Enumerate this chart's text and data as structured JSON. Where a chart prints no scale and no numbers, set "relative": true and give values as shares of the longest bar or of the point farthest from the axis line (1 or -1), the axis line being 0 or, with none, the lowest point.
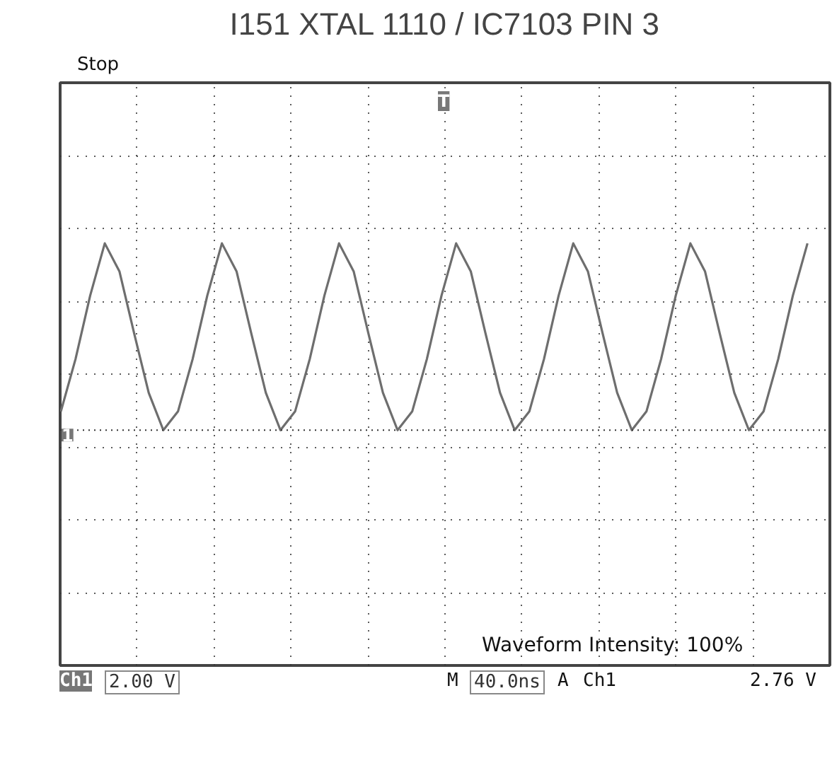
{
  "chart_data": {
    "type": "line",
    "title": "I151 XTAL 1110 / IC7103 PIN 3",
    "relative": true,
    "grid": true,
    "marker": "none",
    "line_style": "solid",
    "categories": [
      null,
      null,
      null,
      null,
      null,
      null,
      null,
      null,
      null,
      null,
      null,
      null,
      null,
      null,
      null,
      null,
      null,
      null,
      null,
      null,
      null,
      null,
      null,
      null,
      null,
      null,
      null,
      null,
      null,
      null,
      null,
      null,
      null,
      null,
      null,
      null,
      null,
      null,
      null,
      null,
      null,
      null,
      null,
      null,
      null,
      null,
      null,
      null,
      null,
      null,
      null,
      null
    ],
    "series": [
      {
        "color": "#6e6e6e",
        "values": [
          0.1,
          0.38,
          0.72,
          1.0,
          0.85,
          0.52,
          0.2,
          0,
          0.1,
          0.38,
          0.72,
          1.0,
          0.85,
          0.52,
          0.2,
          0,
          0.1,
          0.38,
          0.72,
          1.0,
          0.85,
          0.52,
          0.2,
          0,
          0.1,
          0.38,
          0.72,
          1.0,
          0.85,
          0.52,
          0.2,
          0,
          0.1,
          0.38,
          0.72,
          1.0,
          0.85,
          0.52,
          0.2,
          0,
          0.1,
          0.38,
          0.72,
          1.0,
          0.85,
          0.52,
          0.2,
          0,
          0.1,
          0.38,
          0.72,
          1.0
        ]
      }
    ],
    "annotations": [
      "Stop",
      "T",
      "1",
      "Waveform Intensity: 100%",
      "Ch1",
      "2.00 V",
      "M",
      "40.0ns",
      "A",
      "Ch1",
      "2.76 V"
    ]
  }
}
